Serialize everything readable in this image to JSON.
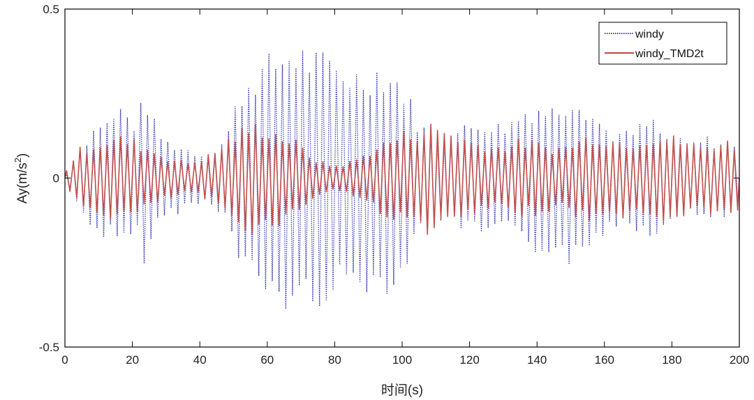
{
  "chart_data": {
    "type": "line",
    "xlabel": "时间(s)",
    "ylabel_base": "Ay(m/s",
    "ylabel_sup": "2",
    "ylabel_close": ")",
    "xlim": [
      0,
      200
    ],
    "ylim": [
      -0.5,
      0.5
    ],
    "xticks": [
      0,
      20,
      40,
      60,
      80,
      100,
      120,
      140,
      160,
      180,
      200
    ],
    "xtick_labels": [
      "0",
      "20",
      "40",
      "60",
      "80",
      "100",
      "120",
      "140",
      "160",
      "180",
      "200"
    ],
    "yticks": [
      -0.5,
      0,
      0.5
    ],
    "ytick_labels": [
      "-0.5",
      "0",
      "0.5"
    ],
    "grid": false,
    "legend_position": "top-right",
    "series": [
      {
        "name": "windy",
        "color": "#3a3fb0",
        "style": "dotted",
        "period_s": 2.0,
        "envelope": {
          "t": [
            0,
            4,
            8,
            10,
            13,
            16,
            18,
            21,
            24,
            27,
            30,
            35,
            40,
            44,
            48,
            52,
            56,
            60,
            64,
            68,
            72,
            76,
            80,
            84,
            88,
            92,
            96,
            100,
            104,
            108,
            112,
            116,
            120,
            124,
            128,
            132,
            136,
            140,
            144,
            148,
            151,
            154,
            158,
            162,
            166,
            170,
            174,
            178,
            182,
            186,
            190,
            194,
            198,
            200
          ],
          "a": [
            0.0,
            0.1,
            0.15,
            0.19,
            0.18,
            0.23,
            0.21,
            0.18,
            0.27,
            0.16,
            0.12,
            0.1,
            0.08,
            0.08,
            0.14,
            0.28,
            0.34,
            0.37,
            0.4,
            0.42,
            0.4,
            0.38,
            0.37,
            0.35,
            0.33,
            0.36,
            0.34,
            0.31,
            0.2,
            0.14,
            0.13,
            0.15,
            0.17,
            0.19,
            0.17,
            0.18,
            0.22,
            0.24,
            0.22,
            0.25,
            0.28,
            0.25,
            0.19,
            0.15,
            0.14,
            0.16,
            0.19,
            0.13,
            0.12,
            0.11,
            0.13,
            0.12,
            0.11,
            0.08
          ]
        }
      },
      {
        "name": "windy_TMD2t",
        "color": "#c0504d",
        "style": "solid",
        "period_s": 2.0,
        "envelope": {
          "t": [
            0,
            4,
            8,
            12,
            16,
            20,
            24,
            28,
            32,
            36,
            40,
            44,
            48,
            52,
            56,
            60,
            64,
            68,
            72,
            76,
            80,
            84,
            88,
            92,
            96,
            100,
            104,
            108,
            112,
            116,
            120,
            124,
            128,
            132,
            136,
            140,
            144,
            148,
            152,
            156,
            160,
            164,
            168,
            172,
            176,
            180,
            184,
            188,
            192,
            196,
            200
          ],
          "a": [
            0.02,
            0.09,
            0.11,
            0.12,
            0.13,
            0.12,
            0.1,
            0.08,
            0.06,
            0.05,
            0.06,
            0.08,
            0.12,
            0.15,
            0.17,
            0.16,
            0.14,
            0.12,
            0.08,
            0.05,
            0.04,
            0.05,
            0.07,
            0.1,
            0.12,
            0.14,
            0.15,
            0.17,
            0.16,
            0.14,
            0.12,
            0.11,
            0.1,
            0.11,
            0.12,
            0.11,
            0.1,
            0.1,
            0.12,
            0.14,
            0.13,
            0.12,
            0.12,
            0.13,
            0.14,
            0.13,
            0.12,
            0.1,
            0.11,
            0.12,
            0.1
          ]
        }
      }
    ]
  }
}
